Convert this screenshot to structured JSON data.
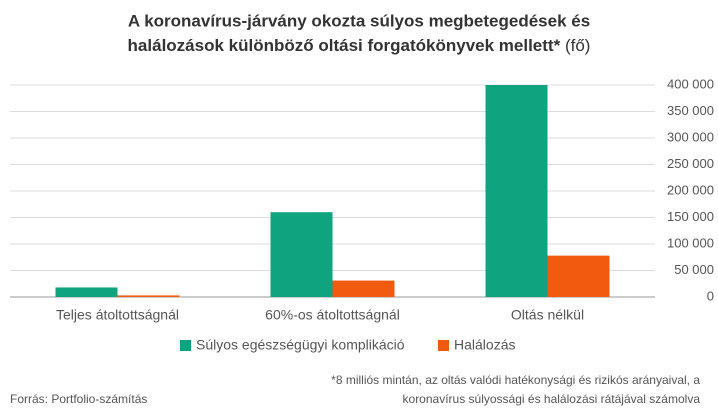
{
  "chart_data": {
    "type": "bar",
    "title": [
      "A koronavírus-járvány okozta súlyos megbetegedések és",
      "halálozások különböző oltási forgatókönyvek mellett*"
    ],
    "title_unit": "(fő)",
    "categories": [
      "Teljes átoltottságnál",
      "60%-os átoltottságnál",
      "Oltás nélkül"
    ],
    "series": [
      {
        "name": "Súlyos egészségügyi komplikáció",
        "color": "#0fa37f",
        "values": [
          18000,
          160000,
          400000
        ]
      },
      {
        "name": "Halálozás",
        "color": "#f25a0f",
        "values": [
          3000,
          31000,
          78000
        ]
      }
    ],
    "ylim": [
      0,
      400000
    ],
    "yticks": [
      0,
      {
        "value": 50000,
        "label": "50 000"
      },
      {
        "value": 100000,
        "label": "100 000"
      },
      {
        "value": 150000,
        "label": "150 000"
      },
      {
        "value": 200000,
        "label": "200 000"
      },
      {
        "value": 250000,
        "label": "250 000"
      },
      {
        "value": 300000,
        "label": "300 000"
      },
      {
        "value": 350000,
        "label": "350 000"
      },
      {
        "value": 400000,
        "label": "400 000"
      }
    ],
    "grid": true,
    "source": "Forrás: Portfolio-számítás",
    "footnote": [
      "*8 milliós mintán, az oltás valódi hatékonysági és rizikós arányaival, a",
      "koronavírus súlyossági és halálozási rátájával számolva"
    ]
  }
}
